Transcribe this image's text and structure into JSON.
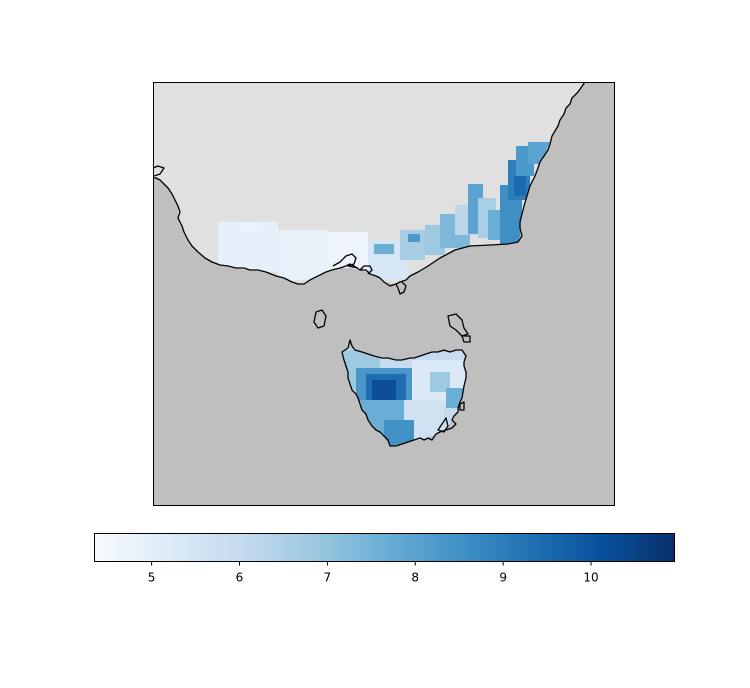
{
  "map": {
    "colors": {
      "ocean": "#bfbfbf",
      "land": "#e0e0e0",
      "coastline": "#000000",
      "frame": "#000000"
    },
    "colormap_name": "Blues",
    "colormap_stops": [
      "#f7fbff",
      "#deebf7",
      "#c6dbef",
      "#9ecae1",
      "#6baed6",
      "#4292c6",
      "#2171b5",
      "#08519c",
      "#08306b"
    ]
  },
  "colorbar": {
    "range": [
      4.35,
      10.95
    ],
    "ticks": [
      {
        "value": 5,
        "label": "5"
      },
      {
        "value": 6,
        "label": "6"
      },
      {
        "value": 7,
        "label": "7"
      },
      {
        "value": 8,
        "label": "8"
      },
      {
        "value": 9,
        "label": "9"
      },
      {
        "value": 10,
        "label": "10"
      }
    ]
  }
}
